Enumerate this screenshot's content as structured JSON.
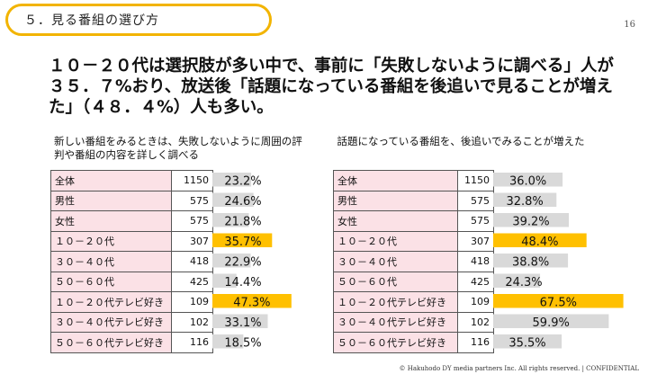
{
  "header": {
    "section_title": "５．見る番組の選び方",
    "page_number": "16"
  },
  "headline": "１０－２０代は選択肢が多い中で、事前に「失敗しないように調べる」人が３５．７%おり、放送後「話題になっている番組を後追いで見ることが増えた」（４８．４%）人も多い。",
  "colors": {
    "pill_border": "#f2b400",
    "category_cell": "#fbe1e6",
    "bar_default": "#d9d9d9",
    "bar_highlight": "#ffc000"
  },
  "chart_data": [
    {
      "type": "bar",
      "orientation": "horizontal",
      "title": "新しい番組をみるときは、失敗しないように周囲の評判や番組の内容を詳しく調べる",
      "categories": [
        "全体",
        "男性",
        "女性",
        "１０－２０代",
        "３０－４０代",
        "５０－６０代",
        "１０－２０代テレビ好き",
        "３０－４０代テレビ好き",
        "５０－６０代テレビ好き"
      ],
      "sample_sizes": [
        "1150",
        "575",
        "575",
        "307",
        "418",
        "425",
        "109",
        "102",
        "116"
      ],
      "values": [
        23.2,
        24.6,
        21.8,
        35.7,
        22.9,
        14.4,
        47.3,
        33.1,
        18.5
      ],
      "value_labels": [
        "23.2%",
        "24.6%",
        "21.8%",
        "35.7%",
        "22.9%",
        "14.4%",
        "47.3%",
        "33.1%",
        "18.5%"
      ],
      "highlighted": [
        false,
        false,
        false,
        true,
        false,
        false,
        true,
        false,
        false
      ],
      "unit": "%",
      "xlim": [
        0,
        70
      ]
    },
    {
      "type": "bar",
      "orientation": "horizontal",
      "title": "話題になっている番組を、後追いでみることが増えた",
      "categories": [
        "全体",
        "男性",
        "女性",
        "１０－２０代",
        "３０－４０代",
        "５０－６０代",
        "１０－２０代テレビ好き",
        "３０－４０代テレビ好き",
        "５０－６０代テレビ好き"
      ],
      "sample_sizes": [
        "1150",
        "575",
        "575",
        "307",
        "418",
        "425",
        "109",
        "102",
        "116"
      ],
      "values": [
        36.0,
        32.8,
        39.2,
        48.4,
        38.8,
        24.3,
        67.5,
        59.9,
        35.5
      ],
      "value_labels": [
        "36.0%",
        "32.8%",
        "39.2%",
        "48.4%",
        "38.8%",
        "24.3%",
        "67.5%",
        "59.9%",
        "35.5%"
      ],
      "highlighted": [
        false,
        false,
        false,
        true,
        false,
        false,
        true,
        false,
        false
      ],
      "unit": "%",
      "xlim": [
        0,
        70
      ]
    }
  ],
  "footer": {
    "copyright": "© Hakuhodo DY media partners Inc. All rights reserved. | CONFIDENTIAL"
  }
}
